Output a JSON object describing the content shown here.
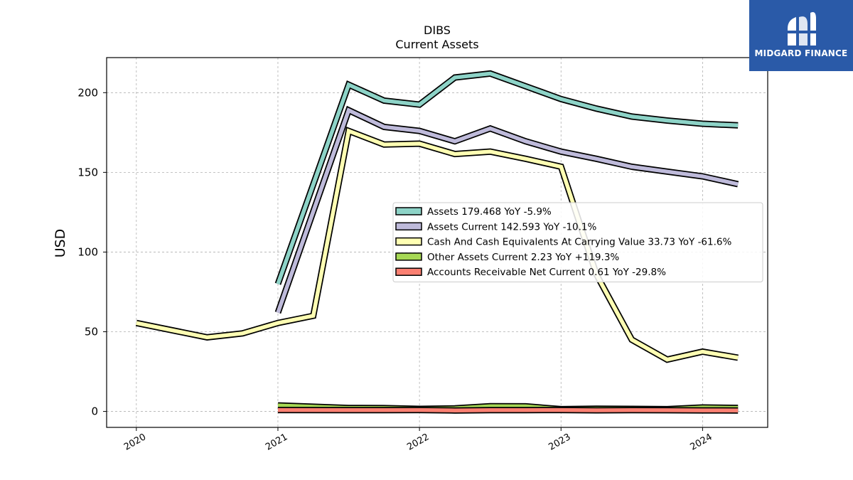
{
  "brand": {
    "name": "MIDGARD FINANCE",
    "bg_color": "#2a5aa8"
  },
  "chart_data": {
    "type": "line",
    "title": "DIBS",
    "subtitle": "Current  Assets",
    "ylabel": "USD",
    "ylim": [
      -10,
      222
    ],
    "xlim": [
      2019.79,
      2024.46
    ],
    "x_ticks": [
      2020,
      2021,
      2022,
      2023,
      2024
    ],
    "x_tick_labels": [
      "2020",
      "2021",
      "2022",
      "2023",
      "2024"
    ],
    "y_ticks": [
      0,
      50,
      100,
      150,
      200
    ],
    "y_tick_labels": [
      "0",
      "50",
      "100",
      "150",
      "200"
    ],
    "grid": true,
    "legend_placement": "center-right",
    "series": [
      {
        "name": "Assets",
        "legend_label": "Assets  179.468 YoY -5.9%",
        "color": "#8dd3c7",
        "x": [
          2021.0,
          2021.5,
          2021.75,
          2022.0,
          2022.25,
          2022.5,
          2022.75,
          2023.0,
          2023.25,
          2023.5,
          2023.75,
          2024.0,
          2024.25
        ],
        "y": [
          80,
          205,
          195,
          192.5,
          209.5,
          212,
          204,
          196,
          190,
          185,
          182.5,
          180.5,
          179.468
        ]
      },
      {
        "name": "Assets Current",
        "legend_label": "Assets Current  142.593 YoY -10.1%",
        "color": "#bebada",
        "x": [
          2021.0,
          2021.5,
          2021.75,
          2022.0,
          2022.25,
          2022.5,
          2022.75,
          2023.0,
          2023.25,
          2023.5,
          2023.75,
          2024.0,
          2024.25
        ],
        "y": [
          62,
          189,
          178.5,
          176,
          169.5,
          177.5,
          169.5,
          163,
          158.5,
          153.5,
          150.5,
          147.5,
          142.593
        ]
      },
      {
        "name": "Cash And Cash Equivalents At Carrying Value",
        "legend_label": "Cash And Cash Equivalents At Carrying Value  33.73 YoY -61.6%",
        "color": "#ffffb3",
        "x": [
          2020.0,
          2020.5,
          2020.75,
          2021.0,
          2021.25,
          2021.5,
          2021.75,
          2022.0,
          2022.25,
          2022.5,
          2022.75,
          2023.0,
          2023.25,
          2023.5,
          2023.75,
          2024.0,
          2024.25
        ],
        "y": [
          55.5,
          46.5,
          49,
          55.5,
          60,
          176,
          167.5,
          168,
          161.5,
          163,
          158.5,
          153.5,
          86,
          45,
          32.5,
          37.5,
          33.73
        ]
      },
      {
        "name": "Other Assets Current",
        "legend_label": "Other Assets Current  2.23 YoY +119.3%",
        "color": "#a6d854",
        "x": [
          2021.0,
          2021.5,
          2021.75,
          2022.0,
          2022.25,
          2022.5,
          2022.75,
          2023.0,
          2023.25,
          2023.5,
          2023.75,
          2024.0,
          2024.25
        ],
        "y": [
          3.8,
          2.2,
          2.1,
          1.6,
          1.9,
          3.3,
          3.2,
          1.4,
          1.7,
          1.6,
          1.4,
          2.5,
          2.23
        ]
      },
      {
        "name": "Accounts Receivable Net Current",
        "legend_label": "Accounts Receivable Net Current  0.61 YoY -29.8%",
        "color": "#fb8072",
        "x": [
          2021.0,
          2021.5,
          2021.75,
          2022.0,
          2022.25,
          2022.5,
          2022.75,
          2023.0,
          2023.25,
          2023.5,
          2023.75,
          2024.0,
          2024.25
        ],
        "y": [
          0.9,
          0.8,
          0.85,
          0.9,
          0.6,
          0.8,
          0.85,
          0.87,
          0.7,
          0.8,
          0.75,
          0.65,
          0.61
        ]
      }
    ]
  }
}
